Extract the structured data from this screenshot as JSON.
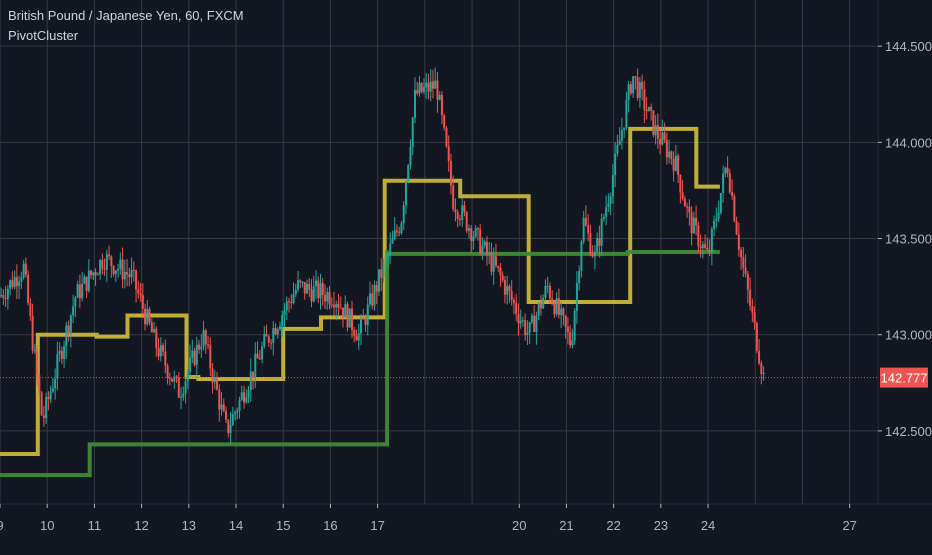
{
  "header": {
    "symbol_line": "British Pound / Japanese Yen, 60, FXCM",
    "indicator_name": "PivotCluster"
  },
  "colors": {
    "background": "#131722",
    "grid": "#363a45",
    "axis_text": "#b2b5be",
    "up_candle": "#26a69a",
    "down_candle": "#ef5350",
    "yellow_line": "#c8b63a",
    "green_line": "#3f8a37",
    "price_line": "#ef5350",
    "price_label_bg": "#ef5350",
    "price_label_text": "#ffffff"
  },
  "chart_data": {
    "type": "candlestick",
    "title": "British Pound / Japanese Yen, 60, FXCM",
    "indicator": "PivotCluster",
    "x_ticks": [
      "9",
      "10",
      "11",
      "12",
      "13",
      "14",
      "15",
      "16",
      "17",
      "18",
      "19",
      "20",
      "21",
      "22",
      "23",
      "24",
      "25",
      "26",
      "27"
    ],
    "x_tick_labels_shown": [
      "9",
      "10",
      "11",
      "12",
      "13",
      "14",
      "15",
      "16",
      "17",
      "20",
      "21",
      "22",
      "23",
      "24",
      "27"
    ],
    "xlim": [
      9.0,
      27.6
    ],
    "ylim": [
      142.12,
      144.74
    ],
    "y_ticks": [
      142.5,
      143.0,
      143.5,
      144.0,
      144.5
    ],
    "y_tick_labels": [
      "142.500",
      "143.000",
      "143.500",
      "144.000",
      "144.500"
    ],
    "grid": true,
    "last_price": 142.777,
    "last_price_label": "142.777",
    "series": [
      {
        "kind": "step_line",
        "color": "#c8b63a",
        "x": [
          9.0,
          9.8,
          9.8,
          11.05,
          11.05,
          11.7,
          11.7,
          12.95,
          12.95,
          13.2,
          13.2,
          13.45,
          13.45,
          15.0,
          15.0,
          15.05,
          15.05,
          15.5,
          15.5,
          15.8,
          15.8,
          17.15,
          17.15,
          17.8,
          17.8,
          18.75,
          18.75,
          20.2,
          20.2,
          21.1,
          21.1,
          21.3,
          21.3,
          22.35,
          22.35,
          23.0,
          23.0,
          23.75,
          23.75,
          24.25
        ],
        "y": [
          142.38,
          142.38,
          143.0,
          143.0,
          142.99,
          142.99,
          143.1,
          143.1,
          142.78,
          142.78,
          142.77,
          142.77,
          142.77,
          142.77,
          143.03,
          143.03,
          143.03,
          143.03,
          143.03,
          143.03,
          143.09,
          143.09,
          143.8,
          143.8,
          143.8,
          143.8,
          143.72,
          143.72,
          143.17,
          143.17,
          143.17,
          143.17,
          143.17,
          143.17,
          144.07,
          144.07,
          144.07,
          144.07,
          143.77,
          143.77
        ]
      },
      {
        "kind": "step_line",
        "color": "#3f8a37",
        "x": [
          9.0,
          10.9,
          10.9,
          15.05,
          15.05,
          17.2,
          17.2,
          22.3,
          22.3,
          24.25
        ],
        "y": [
          142.27,
          142.27,
          142.43,
          142.43,
          142.43,
          142.43,
          143.42,
          143.42,
          143.43,
          143.43
        ]
      },
      {
        "kind": "candles",
        "up_color": "#26a69a",
        "down_color": "#ef5350",
        "path_x": [
          9.0,
          9.5,
          9.9,
          10.6,
          11.2,
          11.8,
          12.3,
          12.8,
          13.3,
          13.8,
          14.6,
          15.3,
          16.1,
          16.6,
          17.5,
          17.8,
          18.25,
          18.6,
          19.6,
          20.2,
          20.6,
          21.1,
          21.35,
          21.6,
          22.0,
          22.4,
          22.9,
          23.3,
          23.6,
          24.0,
          24.4,
          24.7,
          25.2
        ],
        "path_y": [
          143.2,
          143.35,
          142.55,
          143.2,
          143.4,
          143.3,
          142.95,
          142.7,
          143.0,
          142.5,
          142.95,
          143.25,
          143.2,
          143.0,
          143.6,
          144.25,
          144.3,
          143.7,
          143.3,
          143.0,
          143.25,
          142.95,
          143.6,
          143.4,
          143.85,
          144.35,
          144.05,
          143.9,
          143.6,
          143.4,
          143.9,
          143.4,
          142.75
        ],
        "count": 340
      }
    ]
  }
}
